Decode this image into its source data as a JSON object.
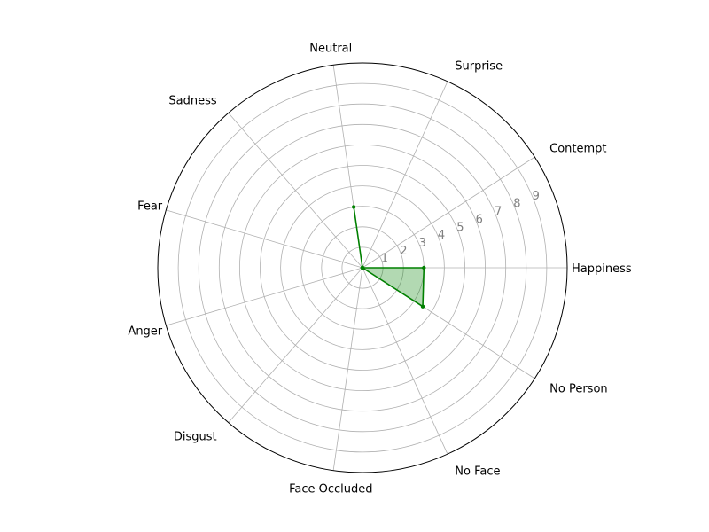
{
  "chart_data": {
    "type": "radar",
    "categories": [
      "Happiness",
      "Contempt",
      "Surprise",
      "Neutral",
      "Sadness",
      "Fear",
      "Anger",
      "Disgust",
      "Face Occluded",
      "No Face",
      "No Person"
    ],
    "series": [
      {
        "values": [
          3,
          0,
          0,
          3,
          0,
          0,
          0,
          0,
          0,
          0,
          3.5
        ],
        "color": "#008000",
        "fill": "#008000",
        "fill_opacity": 0.3,
        "marker": "dot"
      }
    ],
    "r_ticks": [
      "1",
      "2",
      "3",
      "4",
      "5",
      "6",
      "7",
      "8",
      "9"
    ],
    "rlim": [
      0,
      10
    ],
    "grid": true,
    "direction": "counterclockwise",
    "start_angle_deg": 0
  }
}
